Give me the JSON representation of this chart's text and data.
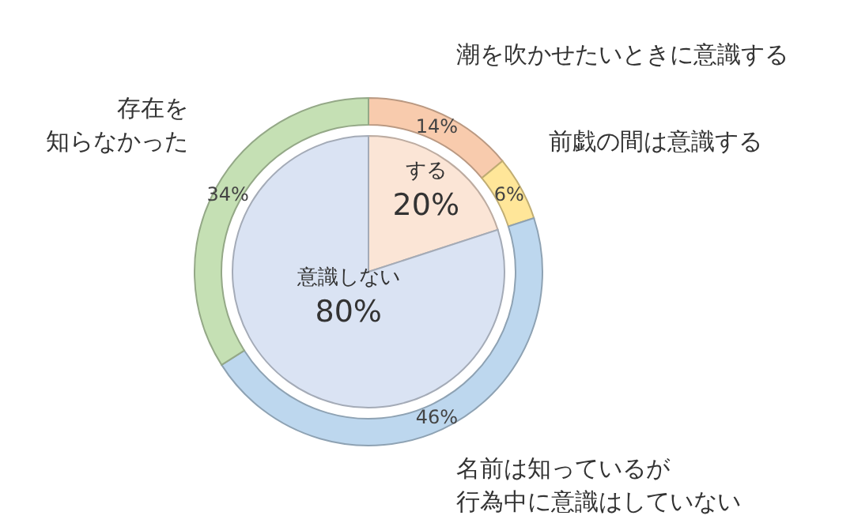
{
  "chart_data": [
    {
      "type": "pie",
      "categories": [
        "する",
        "意識しない"
      ],
      "values": [
        20,
        80
      ],
      "colors": [
        "#fbe5d6",
        "#dae3f3"
      ],
      "value_labels": [
        "20%",
        "80%"
      ]
    },
    {
      "type": "donut",
      "categories": [
        "潮を吹かせたいときに意識する",
        "前戯の間は意識する",
        "名前は知っているが行為中に意識はしていない",
        "存在を知らなかった"
      ],
      "values": [
        14,
        6,
        46,
        34
      ],
      "colors": [
        "#f8cbad",
        "#ffe699",
        "#bdd7ee",
        "#c5e0b4"
      ],
      "value_labels": [
        "14%",
        "6%",
        "46%",
        "34%"
      ]
    }
  ]
}
